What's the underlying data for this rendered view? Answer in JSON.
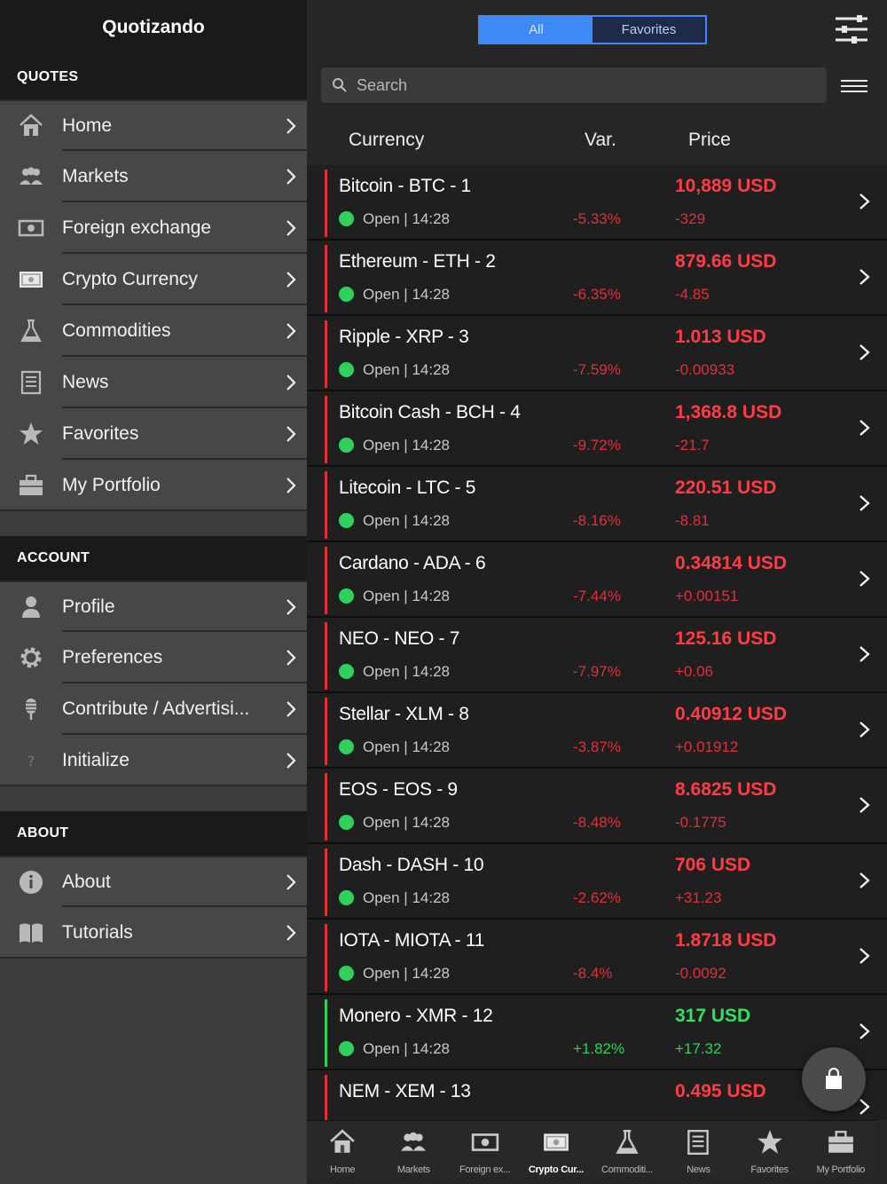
{
  "sidebar": {
    "title": "Quotizando",
    "sections": {
      "quotes": "QUOTES",
      "account": "ACCOUNT",
      "about": "ABOUT"
    },
    "quotes_items": [
      {
        "label": "Home",
        "icon": "home-icon"
      },
      {
        "label": "Markets",
        "icon": "users-icon"
      },
      {
        "label": "Foreign exchange",
        "icon": "banknote-icon"
      },
      {
        "label": "Crypto Currency",
        "icon": "crypto-card-icon"
      },
      {
        "label": "Commodities",
        "icon": "flask-icon"
      },
      {
        "label": "News",
        "icon": "newspaper-icon"
      },
      {
        "label": "Favorites",
        "icon": "star-icon"
      },
      {
        "label": "My Portfolio",
        "icon": "briefcase-icon"
      }
    ],
    "account_items": [
      {
        "label": "Profile",
        "icon": "person-icon"
      },
      {
        "label": "Preferences",
        "icon": "gear-icon"
      },
      {
        "label": "Contribute / Advertisi...",
        "icon": "microphone-icon"
      },
      {
        "label": "Initialize",
        "icon": "question-icon"
      }
    ],
    "about_items": [
      {
        "label": "About",
        "icon": "info-icon"
      },
      {
        "label": "Tutorials",
        "icon": "book-icon"
      }
    ]
  },
  "topbar": {
    "segment_all": "All",
    "segment_favorites": "Favorites",
    "active_segment": "All"
  },
  "search": {
    "placeholder": "Search",
    "value": ""
  },
  "columns": {
    "currency": "Currency",
    "var": "Var.",
    "price": "Price"
  },
  "quotes": [
    {
      "name": "Bitcoin - BTC - 1",
      "status": "Open | 14:28",
      "var": "-5.33%",
      "price": "10,889 USD",
      "change": "-329",
      "trend": "down"
    },
    {
      "name": "Ethereum - ETH - 2",
      "status": "Open | 14:28",
      "var": "-6.35%",
      "price": "879.66 USD",
      "change": "-4.85",
      "trend": "down"
    },
    {
      "name": "Ripple - XRP - 3",
      "status": "Open | 14:28",
      "var": "-7.59%",
      "price": "1.013 USD",
      "change": "-0.00933",
      "trend": "down"
    },
    {
      "name": "Bitcoin Cash - BCH - 4",
      "status": "Open | 14:28",
      "var": "-9.72%",
      "price": "1,368.8 USD",
      "change": "-21.7",
      "trend": "down"
    },
    {
      "name": "Litecoin - LTC - 5",
      "status": "Open | 14:28",
      "var": "-8.16%",
      "price": "220.51 USD",
      "change": "-8.81",
      "trend": "down"
    },
    {
      "name": "Cardano - ADA - 6",
      "status": "Open | 14:28",
      "var": "-7.44%",
      "price": "0.34814 USD",
      "change": "+0.00151",
      "trend": "down"
    },
    {
      "name": "NEO - NEO - 7",
      "status": "Open | 14:28",
      "var": "-7.97%",
      "price": "125.16 USD",
      "change": "+0.06",
      "trend": "down"
    },
    {
      "name": "Stellar - XLM - 8",
      "status": "Open | 14:28",
      "var": "-3.87%",
      "price": "0.40912 USD",
      "change": "+0.01912",
      "trend": "down"
    },
    {
      "name": "EOS - EOS - 9",
      "status": "Open | 14:28",
      "var": "-8.48%",
      "price": "8.6825 USD",
      "change": "-0.1775",
      "trend": "down"
    },
    {
      "name": "Dash - DASH - 10",
      "status": "Open | 14:28",
      "var": "-2.62%",
      "price": "706 USD",
      "change": "+31.23",
      "trend": "down"
    },
    {
      "name": "IOTA - MIOTA - 11",
      "status": "Open | 14:28",
      "var": "-8.4%",
      "price": "1.8718 USD",
      "change": "-0.0092",
      "trend": "down"
    },
    {
      "name": "Monero - XMR - 12",
      "status": "Open | 14:28",
      "var": "+1.82%",
      "price": "317 USD",
      "change": "+17.32",
      "trend": "up"
    },
    {
      "name": "NEM - XEM - 13",
      "status": "",
      "var": "",
      "price": "0.495 USD",
      "change": "",
      "trend": "down"
    }
  ],
  "tabbar": [
    {
      "label": "Home",
      "icon": "home-icon"
    },
    {
      "label": "Markets",
      "icon": "users-icon"
    },
    {
      "label": "Foreign ex...",
      "icon": "banknote-icon"
    },
    {
      "label": "Crypto Cur...",
      "icon": "crypto-card-icon",
      "active": true
    },
    {
      "label": "Commoditi...",
      "icon": "flask-icon"
    },
    {
      "label": "News",
      "icon": "newspaper-icon"
    },
    {
      "label": "Favorites",
      "icon": "star-icon"
    },
    {
      "label": "My Portfolio",
      "icon": "briefcase-icon"
    }
  ],
  "colors": {
    "accent_blue": "#3d8af7",
    "down_red": "#e0303a",
    "up_green": "#2fd05b",
    "sidebar_bg": "#474747"
  }
}
